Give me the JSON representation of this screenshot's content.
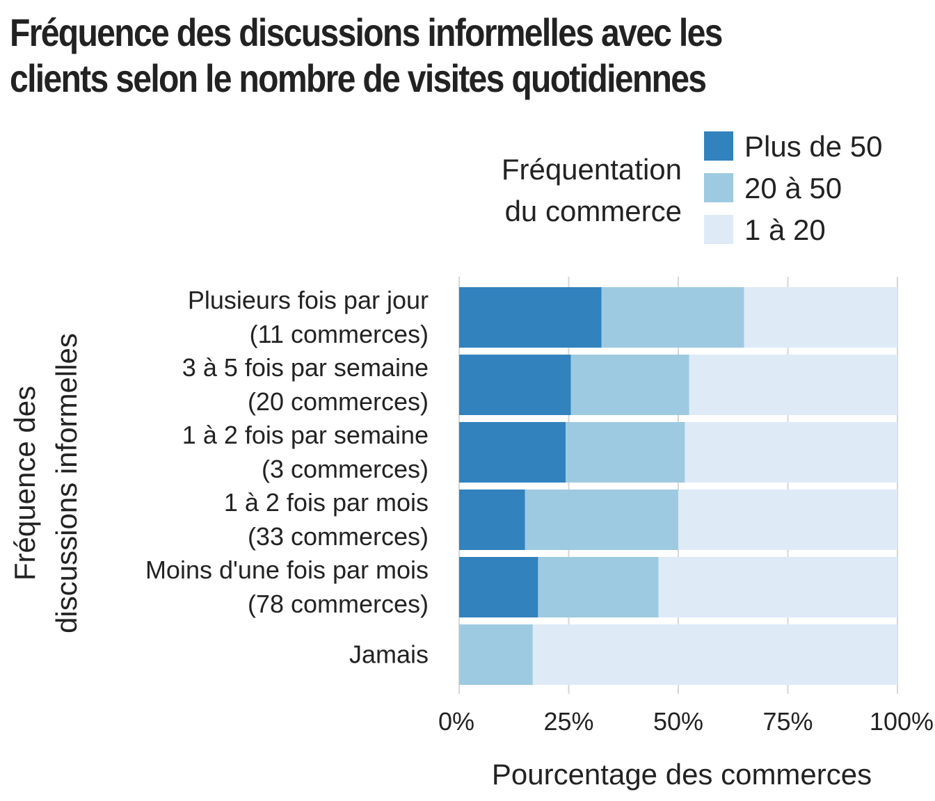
{
  "chart_data": {
    "type": "bar",
    "orientation": "horizontal",
    "stacked": "percent",
    "title": "Fréquence des discussions informelles avec les clients selon le nombre de visites quotidiennes",
    "title_lines": [
      "Fréquence des discussions informelles avec les",
      "clients selon le nombre de visites quotidiennes"
    ],
    "xlabel": "Pourcentage des commerces",
    "ylabel_lines": [
      "Fréquence des",
      "discussions informelles"
    ],
    "xlim": [
      0,
      100
    ],
    "x_ticks": [
      "0%",
      "25%",
      "50%",
      "75%",
      "100%"
    ],
    "grid": "vertical",
    "legend": {
      "title_lines": [
        "Fréquentation",
        "du commerce"
      ],
      "placement": "top-right",
      "entries": [
        "Plus de 50",
        "20 à 50",
        "1 à 20"
      ]
    },
    "categories": [
      [
        "Plusieurs fois par jour",
        "(11 commerces)"
      ],
      [
        "3 à 5 fois par semaine",
        "(20 commerces)"
      ],
      [
        "1 à 2 fois par semaine",
        "(3 commerces)"
      ],
      [
        "1 à 2 fois par mois",
        "(33 commerces)"
      ],
      [
        "Moins d'une fois par mois",
        "(78 commerces)"
      ],
      [
        "Jamais"
      ]
    ],
    "series": [
      {
        "name": "Plus de 50",
        "color": "#3182bd",
        "values": [
          32.5,
          25.5,
          24.3,
          15.0,
          18.0,
          0.0
        ]
      },
      {
        "name": "20 à 50",
        "color": "#9ecae1",
        "values": [
          32.5,
          27.0,
          27.2,
          35.0,
          27.5,
          16.8
        ]
      },
      {
        "name": "1 à 20",
        "color": "#deebf7",
        "values": [
          35.0,
          47.5,
          48.5,
          50.0,
          54.5,
          83.2
        ]
      }
    ]
  }
}
